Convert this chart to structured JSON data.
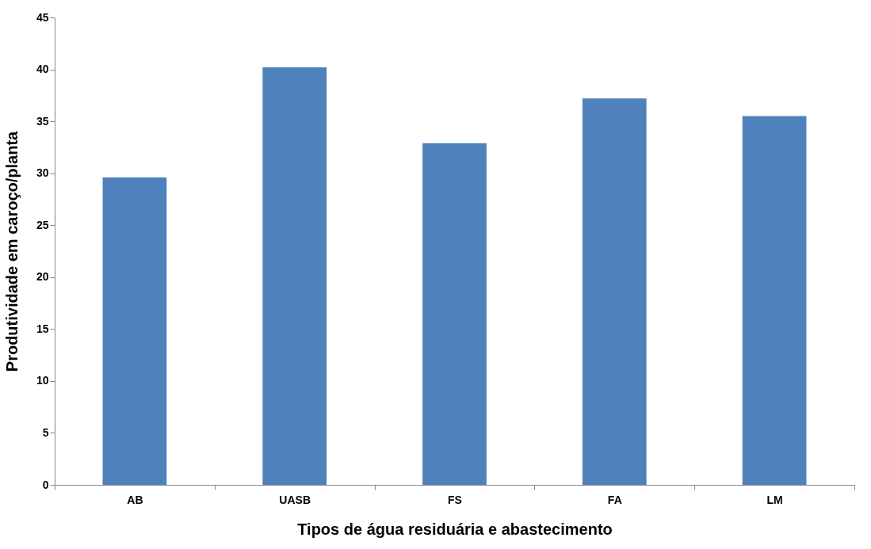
{
  "chart_data": {
    "type": "bar",
    "xlabel": "Tipos de água residuária e abastecimento",
    "ylabel": "Produtividade em  caroço/planta",
    "categories": [
      "AB",
      "UASB",
      "FS",
      "FA",
      "LM"
    ],
    "series": [
      {
        "color": "#4f81bd",
        "values": [
          29.6,
          40.2,
          32.9,
          37.2,
          35.5
        ]
      }
    ],
    "ylim": [
      0,
      45
    ],
    "yticks": [
      0,
      5,
      10,
      15,
      20,
      25,
      30,
      35,
      40,
      45
    ],
    "grid": false
  }
}
